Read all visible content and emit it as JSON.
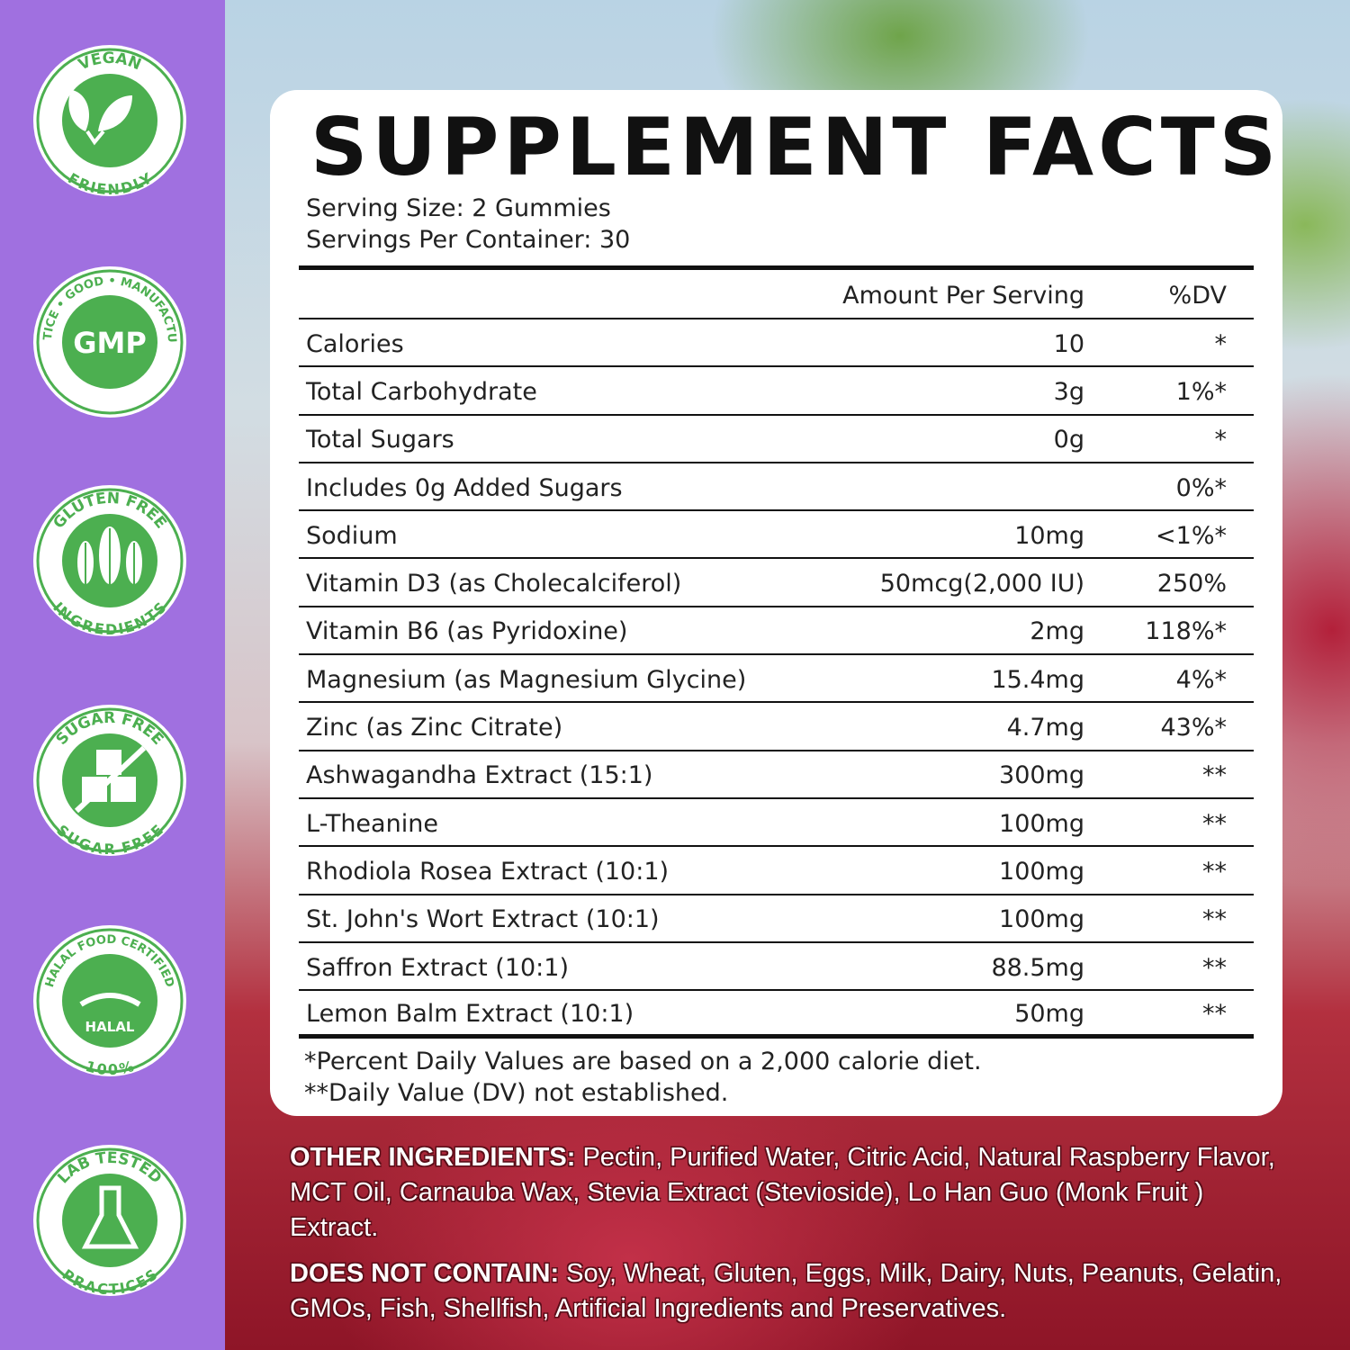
{
  "colors": {
    "sidebar": "#a070e0",
    "badge_green": "#4caf50",
    "card": "#ffffff"
  },
  "badges": [
    {
      "top": "VEGAN",
      "bottom": "FRIENDLY",
      "icon": "leaf-icon"
    },
    {
      "top": "PRACTICE • GOOD • MANUFACTURING",
      "center": "GMP",
      "icon": "gmp-icon"
    },
    {
      "top": "GLUTEN FREE",
      "bottom": "INGREDIENTS",
      "icon": "wheat-icon"
    },
    {
      "top": "SUGAR FREE",
      "bottom": "SUGAR FREE",
      "icon": "sugar-cube-crossed-icon"
    },
    {
      "top": "HALAL FOOD CERTIFIED",
      "center": "HALAL",
      "bottom": "100%",
      "icon": "halal-icon"
    },
    {
      "top": "LAB TESTED",
      "bottom": "PRACTICES",
      "icon": "flask-icon"
    }
  ],
  "facts": {
    "title": "SUPPLEMENT FACTS",
    "serving_size": "Serving Size: 2 Gummies",
    "servings_per_container": "Servings Per Container: 30",
    "header": {
      "amount": "Amount Per Serving",
      "dv": "%DV"
    },
    "rows": [
      {
        "name": "Calories",
        "amount": "10",
        "dv": "*"
      },
      {
        "name": "Total Carbohydrate",
        "amount": "3g",
        "dv": "1%*"
      },
      {
        "name": "Total Sugars",
        "amount": "0g",
        "dv": "*"
      },
      {
        "name": "Includes 0g Added Sugars",
        "amount": "",
        "dv": "0%*"
      },
      {
        "name": "Sodium",
        "amount": "10mg",
        "dv": "<1%*"
      },
      {
        "name": "Vitamin D3 (as Cholecalciferol)",
        "amount": "50mcg(2,000 IU)",
        "dv": "250%"
      },
      {
        "name": "Vitamin B6 (as Pyridoxine)",
        "amount": "2mg",
        "dv": "118%*"
      },
      {
        "name": "Magnesium (as Magnesium Glycine)",
        "amount": "15.4mg",
        "dv": "4%*"
      },
      {
        "name": "Zinc (as Zinc Citrate)",
        "amount": "4.7mg",
        "dv": "43%*"
      },
      {
        "name": "Ashwagandha Extract (15:1)",
        "amount": "300mg",
        "dv": "**"
      },
      {
        "name": "L-Theanine",
        "amount": "100mg",
        "dv": "**"
      },
      {
        "name": "Rhodiola Rosea Extract (10:1)",
        "amount": "100mg",
        "dv": "**"
      },
      {
        "name": "St. John's Wort Extract (10:1)",
        "amount": "100mg",
        "dv": "**"
      },
      {
        "name": "Saffron Extract (10:1)",
        "amount": "88.5mg",
        "dv": "**"
      },
      {
        "name": "Lemon Balm Extract (10:1)",
        "amount": "50mg",
        "dv": "**"
      }
    ],
    "footnote1": "*Percent Daily Values are based on a 2,000 calorie diet.",
    "footnote2": "**Daily Value (DV)  not established."
  },
  "ingredients": {
    "other_label": "OTHER INGREDIENTS:",
    "other_text": " Pectin, Purified Water, Citric Acid, Natural Raspberry Flavor, MCT Oil, Carnauba Wax, Stevia Extract (Stevioside), Lo Han Guo (Monk Fruit ) Extract.",
    "not_label": "DOES NOT CONTAIN:",
    "not_text": " Soy, Wheat, Gluten, Eggs, Milk, Dairy, Nuts, Peanuts, Gelatin, GMOs, Fish, Shellfish, Artificial Ingredients and Preservatives."
  }
}
